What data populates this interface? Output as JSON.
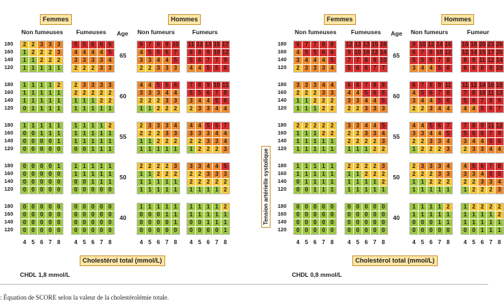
{
  "left": {
    "femmes_label": "Femmes",
    "hommes_label": "Hommes",
    "non_fumeurs_f": "Non fumeuses",
    "fumeurs_f": "Fumeuses",
    "age_label": "Age",
    "non_fumeurs_h": "Non fumeurs",
    "fumeurs_h": "Fumeurs",
    "cholesterol_label": "Cholestérol total (mmol/L)",
    "chdl_label": "CHDL 1,8 mmol/L"
  },
  "right": {
    "femmes_label": "Femmes",
    "hommes_label": "Hommes",
    "non_fumeurs_f": "Non fumeuses",
    "fumeurs_f": "Fumeuses",
    "age_label": "Age",
    "non_fumeurs_h": "Non fumeurs",
    "fumeurs_h": "Fumeur",
    "cholesterol_label": "Cholestérol total (mmol/L)",
    "chdl_label": "CHDL 0,8 mmol/L",
    "tension_label": "Tension artérielle systolique"
  },
  "ages": [
    "65",
    "60",
    "55",
    "50",
    "40"
  ],
  "bp_values": [
    "180",
    "160",
    "140",
    "120"
  ],
  "x_ticks": [
    "4",
    "5",
    "6",
    "7",
    "8"
  ],
  "footnote": ": Équation de SCORE selon la valeur de la cholestérolémie totale.",
  "colors": {
    "green": "#9fc742",
    "yellow": "#f7c53a",
    "orange": "#ee8a2d",
    "red": "#d92c2c"
  },
  "tables": [
    [
      [
        [
          "2 2 3 3 3",
          "1 2 2 2 3",
          "1 1 2 2 2",
          "1 1 1 1 1"
        ],
        [
          "5 5 6 6 6",
          "4 4 4 4 5",
          "3 3 3 3 4",
          "2 2 2 3 3"
        ],
        [
          "6 7 8 9 10",
          "4 5 5 6 7",
          "3 3 4 4 5",
          "2 2 3 3 3"
        ],
        [
          "11 12 13 15 17",
          "8 8 9 10 12",
          "5 6 7 7 9",
          "4 4 5 5 6"
        ]
      ],
      [
        [
          "1 1 1 1 2",
          "1 1 1 1 1",
          "1 1 1 1 1",
          "0 1 1 1 1"
        ],
        [
          "2 3 3 3 3",
          "2 2 2 2 2",
          "1 1 1 2 2",
          "1 1 1 1 1"
        ],
        [
          "4 4 5 5 6",
          "3 3 3 4 4",
          "2 2 2 3 3",
          "1 1 2 2 2"
        ],
        [
          "7 8 9 10 11",
          "5 5 6 7 8",
          "3 4 4 5 6",
          "2 3 3 4 4"
        ]
      ],
      [
        [
          "1 1 1 1 1",
          "0 0 1 1 1",
          "0 0 0 0 1",
          "0 0 0 0 0"
        ],
        [
          "1 1 1 1 2",
          "1 1 1 1 1",
          "1 1 1 1 1",
          "0 0 1 1 1"
        ],
        [
          "2 3 3 3 4",
          "2 2 2 3 3",
          "1 1 2 2 2",
          "1 1 1 1 1"
        ],
        [
          "4 4 5 5 7",
          "3 3 3 4 4",
          "2 2 3 3 4",
          "1 2 2 2 3"
        ]
      ],
      [
        [
          "0 0 0 0 1",
          "0 0 0 0 0",
          "0 0 0 0 0",
          "0 0 0 0 0"
        ],
        [
          "1 1 1 1 1",
          "1 1 1 1 1",
          "0 0 1 1 1",
          "0 0 0 0 0"
        ],
        [
          "2 2 2 2 3",
          "1 1 2 2 2",
          "1 1 1 1 1",
          "1 1 1 1 1"
        ],
        [
          "3 3 4 4 5",
          "2 2 3 3 3",
          "2 2 2 2 2",
          "1 1 1 1 2"
        ]
      ],
      [
        [
          "0 0 0 0 0",
          "0 0 0 0 0",
          "0 0 0 0 0",
          "0 0 0 0 0"
        ],
        [
          "0 0 0 0 0",
          "0 0 0 0 0",
          "0 0 0 0 0",
          "0 0 0 0 0"
        ],
        [
          "1 1 1 1 1",
          "0 0 0 1 1",
          "0 0 0 0 1",
          "0 0 0 0 0"
        ],
        [
          "1 1 1 1 2",
          "1 1 1 1 1",
          "0 0 1 1 1",
          "0 0 0 0 1"
        ]
      ]
    ],
    [
      [
        [
          "6 7 7 8 8",
          "4 5 5 6 6",
          "3 4 4 4 5",
          "2 3 3 3 4"
        ],
        [
          "12 13 13 15 16",
          "9 10 10 12 14",
          "7 7 8 9 10",
          "5 6 6 7 7"
        ],
        [
          "9 10 12 14 16",
          "6 7 8 10 12",
          "5 5 6 7 8",
          "3 4 4 5 6"
        ],
        [
          "16 18 20 23 26",
          "12 14 15 17 20",
          "8 9 11 12 14",
          "6 6 8 9 10"
        ]
      ],
      [
        [
          "3 3 3 4 4",
          "2 2 2 3 3",
          "1 1 2 2 2",
          "1 1 1 2 2"
        ],
        [
          "6 6 7 8 8",
          "4 4 5 6 6",
          "3 3 4 4 5",
          "2 2 3 3 3"
        ],
        [
          "6 7 8 9 11",
          "4 5 6 7 8",
          "3 4 4 5 6",
          "2 2 3 4 4"
        ],
        [
          "11 12 14 16 18",
          "7 8 10 11 13",
          "5 6 7 8 9",
          "4 4 5 6 7"
        ]
      ],
      [
        [
          "2 2 2 2 2",
          "1 1 1 2 2",
          "1 1 1 1 1",
          "1 1 1 1 1"
        ],
        [
          "3 3 4 4 5",
          "2 2 3 3 4",
          "2 2 2 2 3",
          "1 1 1 2 2"
        ],
        [
          "4 4 5 6 7",
          "3 3 4 4 5",
          "2 2 3 3 4",
          "1 2 2 2 3"
        ],
        [
          "7 8 9 11 12",
          "5 6 6 7 9",
          "3 4 4 5 6",
          "2 3 3 4 4"
        ]
      ],
      [
        [
          "1 1 1 1 1",
          "1 1 1 1 1",
          "0 1 1 1 1",
          "0 0 1 1 1"
        ],
        [
          "2 2 2 2 3",
          "1 1 2 2 2",
          "1 1 1 1 2",
          "1 1 1 1 1"
        ],
        [
          "2 3 3 3 4",
          "2 2 2 3 3",
          "1 1 2 2 2",
          "1 1 1 1 1"
        ],
        [
          "4 5 6 7 8",
          "3 3 4 5 5",
          "2 2 3 3 4",
          "1 2 2 2 3"
        ]
      ],
      [
        [
          "0 0 0 0 0",
          "0 0 0 0 0",
          "0 0 0 0 0",
          "0 0 0 0 0"
        ],
        [
          "0 0 0 0 0",
          "0 0 0 0 0",
          "0 0 0 0 0",
          "0 0 0 0 0"
        ],
        [
          "1 1 1 1 2",
          "1 1 1 1 1",
          "0 0 0 1 1",
          "0 0 0 0 0"
        ],
        [
          "1 2 2 2 2",
          "1 1 1 1 2",
          "1 1 1 1 1",
          "0 0 1 1 1"
        ]
      ]
    ]
  ]
}
